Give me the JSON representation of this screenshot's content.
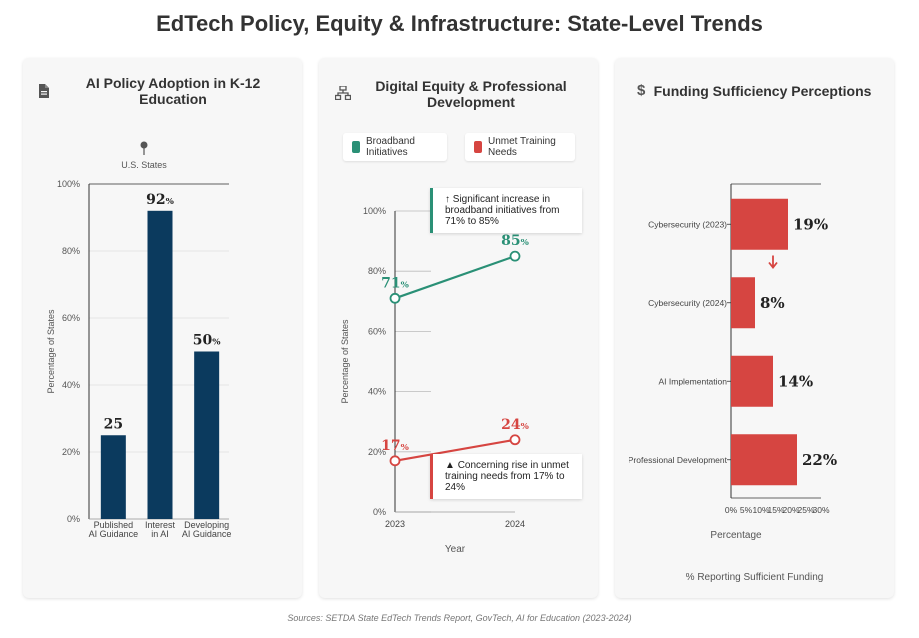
{
  "title": "EdTech Policy, Equity & Infrastructure: State-Level Trends",
  "source": "Sources: SETDA State EdTech Trends Report, GovTech, AI for Education (2023-2024)",
  "colors": {
    "navy": "#0b3a5e",
    "teal": "#2a9076",
    "red": "#d64541"
  },
  "panels": {
    "ai_policy": {
      "title": "AI Policy Adoption in K-12 Education",
      "icon": "document-icon",
      "pin_label": "U.S. States"
    },
    "equity": {
      "title": "Digital Equity & Professional Development",
      "icon": "network-icon",
      "legend": [
        "Broadband Initiatives",
        "Unmet Training Needs"
      ],
      "annotations": {
        "up": "Significant increase in broadband initiatives from 71% to 85%",
        "warning": "Concerning rise in unmet training needs from 17% to 24%"
      }
    },
    "funding": {
      "title": "Funding Sufficiency Perceptions",
      "icon": "dollar-icon",
      "footnote": "% Reporting Sufficient Funding"
    }
  },
  "chart_data": [
    {
      "type": "bar",
      "title": "AI Policy Adoption in K-12 Education",
      "categories": [
        "Published AI Guidance",
        "Interest in AI",
        "Developing AI Guidance"
      ],
      "values": [
        25,
        92,
        50
      ],
      "data_labels": [
        "25",
        "92%",
        "50%"
      ],
      "xlabel": "",
      "ylabel": "Percentage of States",
      "ylim": [
        0,
        100
      ],
      "yticks": [
        "0%",
        "20%",
        "40%",
        "60%",
        "80%",
        "100%"
      ],
      "grid": true
    },
    {
      "type": "line",
      "title": "Digital Equity & Professional Development",
      "x": [
        "2023",
        "2024"
      ],
      "series": [
        {
          "name": "Broadband Initiatives",
          "values": [
            71,
            85
          ],
          "labels": [
            "71%",
            "85%"
          ],
          "color": "#2a9076"
        },
        {
          "name": "Unmet Training Needs",
          "values": [
            17,
            24
          ],
          "labels": [
            "17%",
            "24%"
          ],
          "color": "#d64541"
        }
      ],
      "xlabel": "Year",
      "ylabel": "Percentage of States",
      "ylim": [
        0,
        100
      ],
      "yticks": [
        "0%",
        "20%",
        "40%",
        "60%",
        "80%",
        "100%"
      ],
      "legend": "top"
    },
    {
      "type": "bar",
      "orientation": "horizontal",
      "title": "Funding Sufficiency Perceptions",
      "categories": [
        "Cybersecurity (2023)",
        "Cybersecurity (2024)",
        "AI Implementation",
        "Professional Development"
      ],
      "values": [
        19,
        8,
        14,
        22
      ],
      "data_labels": [
        "19%",
        "8%",
        "14%",
        "22%"
      ],
      "xlabel": "Percentage",
      "ylabel": "",
      "xlim": [
        0,
        30
      ],
      "xticks": [
        "0%",
        "5%",
        "10%",
        "15%",
        "20%",
        "25%",
        "30%"
      ],
      "color": "#d64541"
    }
  ]
}
